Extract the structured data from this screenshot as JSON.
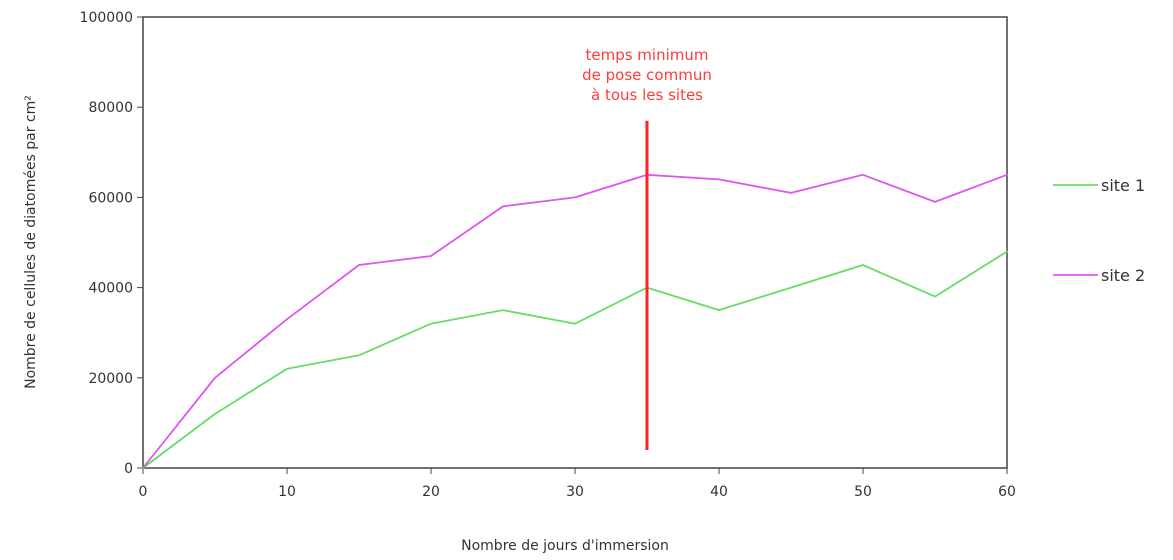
{
  "chart_data": {
    "type": "line",
    "xlabel": "Nombre de jours d'immersion",
    "ylabel": "Nombre de cellules de diatomées par cm²",
    "xlim": [
      0,
      60
    ],
    "ylim": [
      0,
      100000
    ],
    "xticks": [
      0,
      10,
      20,
      30,
      40,
      50,
      60
    ],
    "yticks": [
      0,
      20000,
      40000,
      60000,
      80000,
      100000
    ],
    "grid": false,
    "legend_position": "right",
    "x": [
      0,
      5,
      10,
      15,
      20,
      25,
      30,
      35,
      40,
      45,
      50,
      55,
      60
    ],
    "series": [
      {
        "name": "site 1",
        "color": "#66dd66",
        "values": [
          0,
          12000,
          22000,
          25000,
          32000,
          35000,
          32000,
          40000,
          35000,
          40000,
          45000,
          38000,
          48000
        ]
      },
      {
        "name": "site 2",
        "color": "#dd55ee",
        "values": [
          0,
          20000,
          33000,
          45000,
          47000,
          58000,
          60000,
          65000,
          64000,
          61000,
          65000,
          59000,
          65000
        ]
      }
    ],
    "annotation": {
      "x": 35,
      "y_from": 4000,
      "y_to": 77000,
      "color": "#ff2222",
      "text_lines": [
        "temps minimum",
        "de pose commun",
        "à tous les sites"
      ]
    }
  }
}
